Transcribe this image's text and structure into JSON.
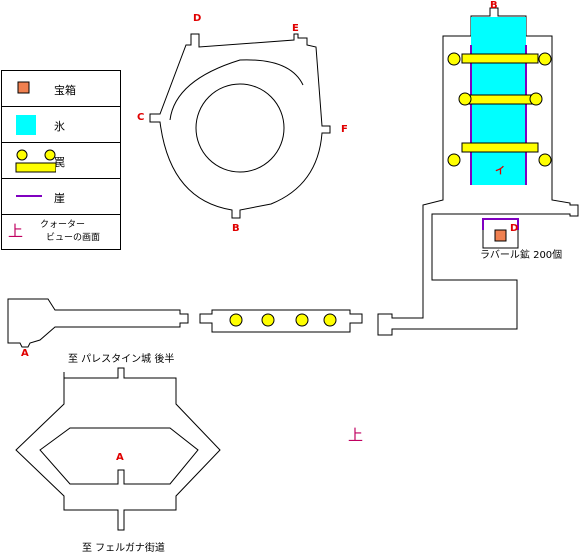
{
  "legend": {
    "items": [
      {
        "label": "宝箱",
        "icon": "treasure-chest",
        "color": "#f08050"
      },
      {
        "label": "氷",
        "icon": "ice",
        "color": "#00ffff"
      },
      {
        "label": "罠",
        "icon": "trap",
        "color": "#ffff00"
      },
      {
        "label": "崖",
        "icon": "cliff",
        "color": "#8000c0"
      }
    ],
    "upmark": "上",
    "upmark_text_1": "クォーター",
    "upmark_text_2": "ビューの画面"
  },
  "markers": {
    "A_top": "A",
    "A_bottom": "A",
    "B_top": "B",
    "B_circle": "B",
    "C": "C",
    "D_circle": "D",
    "D_chest": "D",
    "E": "E",
    "F": "F",
    "i": "イ"
  },
  "captions": {
    "chest_item": "ラバール鉱 200個",
    "to_palace": "至 パレスタイン城 後半",
    "to_felgana": "至 フェルガナ街道",
    "up_mark": "上"
  }
}
